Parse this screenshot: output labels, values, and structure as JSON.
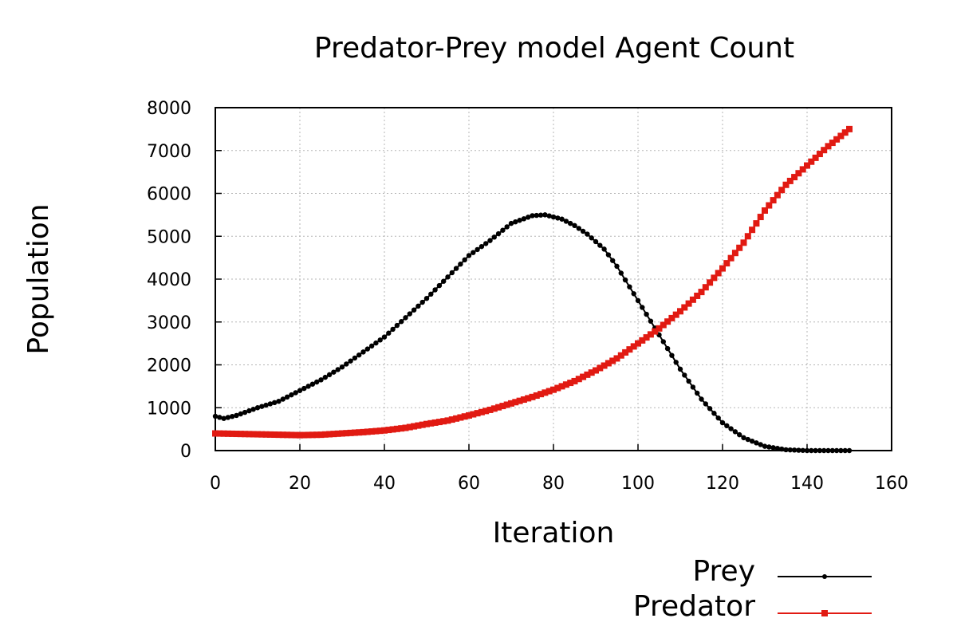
{
  "chart_data": {
    "type": "line",
    "title": "Predator-Prey model Agent Count",
    "xlabel": "Iteration",
    "ylabel": "Population",
    "xlim": [
      0,
      160
    ],
    "ylim": [
      0,
      8000
    ],
    "xticks": [
      0,
      20,
      40,
      60,
      80,
      100,
      120,
      140,
      160
    ],
    "yticks": [
      0,
      1000,
      2000,
      3000,
      4000,
      5000,
      6000,
      7000,
      8000
    ],
    "grid": true,
    "legend_position": "bottom-right",
    "series": [
      {
        "name": "Prey",
        "color": "#000000",
        "marker": "dot",
        "x": [
          0,
          2,
          5,
          10,
          15,
          20,
          25,
          30,
          35,
          40,
          45,
          50,
          55,
          60,
          65,
          70,
          75,
          78,
          82,
          85,
          88,
          92,
          95,
          100,
          105,
          110,
          115,
          120,
          125,
          130,
          135,
          140,
          145,
          150
        ],
        "y": [
          800,
          750,
          820,
          1000,
          1150,
          1400,
          1650,
          1950,
          2300,
          2650,
          3100,
          3550,
          4050,
          4550,
          4900,
          5300,
          5480,
          5500,
          5400,
          5250,
          5050,
          4700,
          4300,
          3500,
          2700,
          1900,
          1200,
          650,
          300,
          100,
          20,
          0,
          0,
          0
        ]
      },
      {
        "name": "Predator",
        "color": "#e11a12",
        "marker": "square",
        "x": [
          0,
          5,
          10,
          15,
          20,
          25,
          30,
          35,
          40,
          45,
          50,
          55,
          60,
          65,
          70,
          75,
          80,
          85,
          90,
          95,
          100,
          105,
          110,
          115,
          120,
          125,
          130,
          135,
          140,
          145,
          150
        ],
        "y": [
          400,
          390,
          380,
          370,
          360,
          370,
          400,
          430,
          470,
          530,
          620,
          700,
          820,
          950,
          1100,
          1250,
          1420,
          1620,
          1870,
          2150,
          2500,
          2850,
          3250,
          3700,
          4250,
          4850,
          5600,
          6200,
          6650,
          7100,
          7500
        ]
      }
    ]
  }
}
